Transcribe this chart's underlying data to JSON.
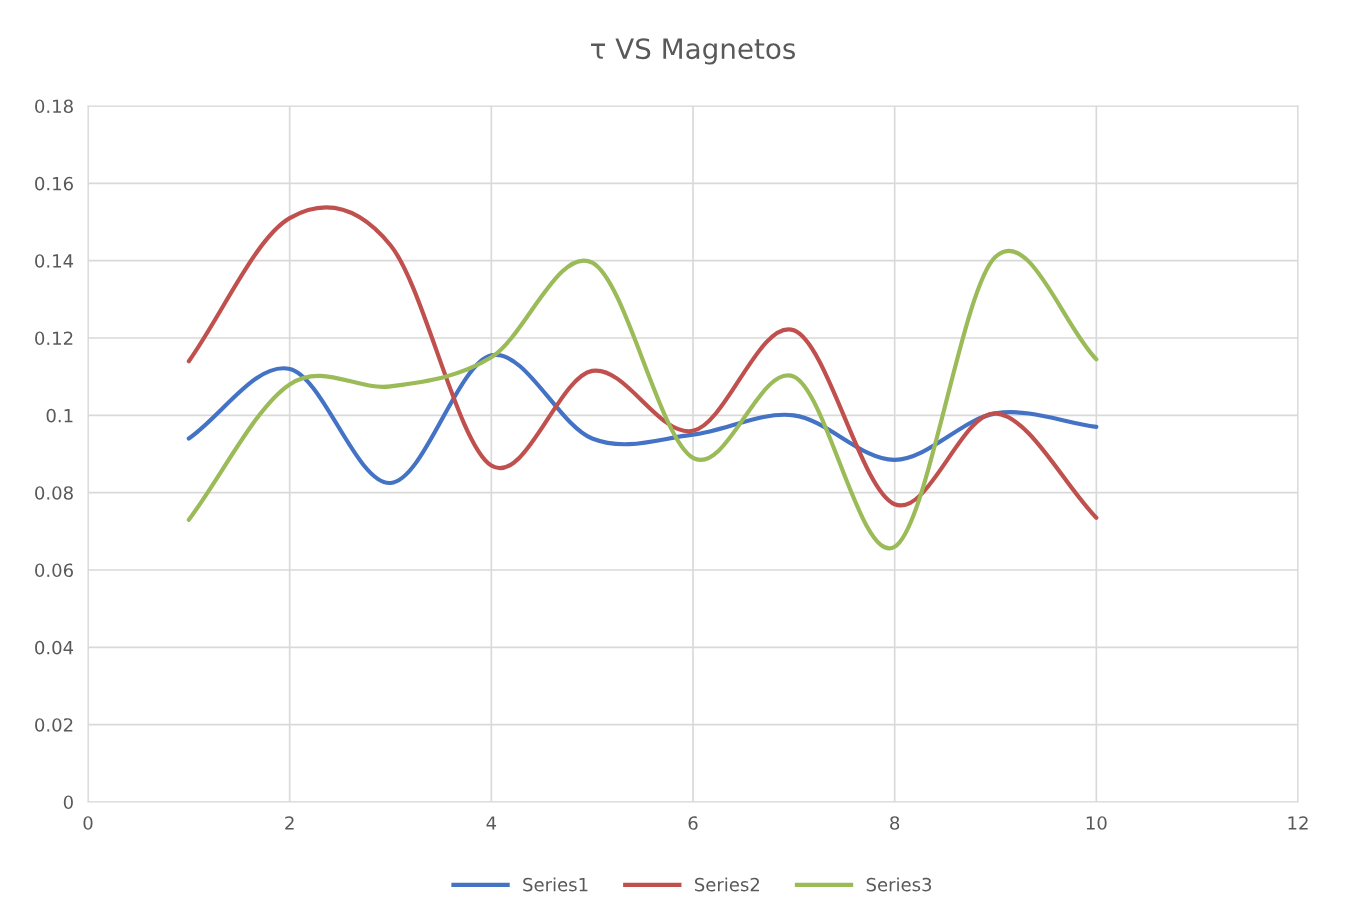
{
  "chart_data": {
    "type": "line",
    "title": "τ VS Magnetos",
    "x": [
      1,
      2,
      3,
      4,
      5,
      6,
      7,
      8,
      9,
      10
    ],
    "series": [
      {
        "name": "Series1",
        "color": "#4472c4",
        "values": [
          0.094,
          0.112,
          0.0825,
          0.1155,
          0.094,
          0.095,
          0.1,
          0.0885,
          0.1005,
          0.097
        ]
      },
      {
        "name": "Series2",
        "color": "#c0504d",
        "values": [
          0.114,
          0.151,
          0.144,
          0.087,
          0.1115,
          0.096,
          0.122,
          0.077,
          0.1005,
          0.0735
        ]
      },
      {
        "name": "Series3",
        "color": "#9bbb59",
        "values": [
          0.073,
          0.108,
          0.1075,
          0.115,
          0.1395,
          0.089,
          0.11,
          0.066,
          0.141,
          0.1145
        ]
      }
    ],
    "xlim": [
      0,
      12
    ],
    "xticks": [
      0,
      2,
      4,
      6,
      8,
      10,
      12
    ],
    "ylim": [
      0,
      0.18
    ],
    "yticks": [
      0,
      0.02,
      0.04,
      0.06,
      0.08,
      0.1,
      0.12,
      0.14,
      0.16,
      0.18
    ],
    "grid": true,
    "legend": "bottom",
    "marker": "none",
    "line_style": "solid"
  }
}
